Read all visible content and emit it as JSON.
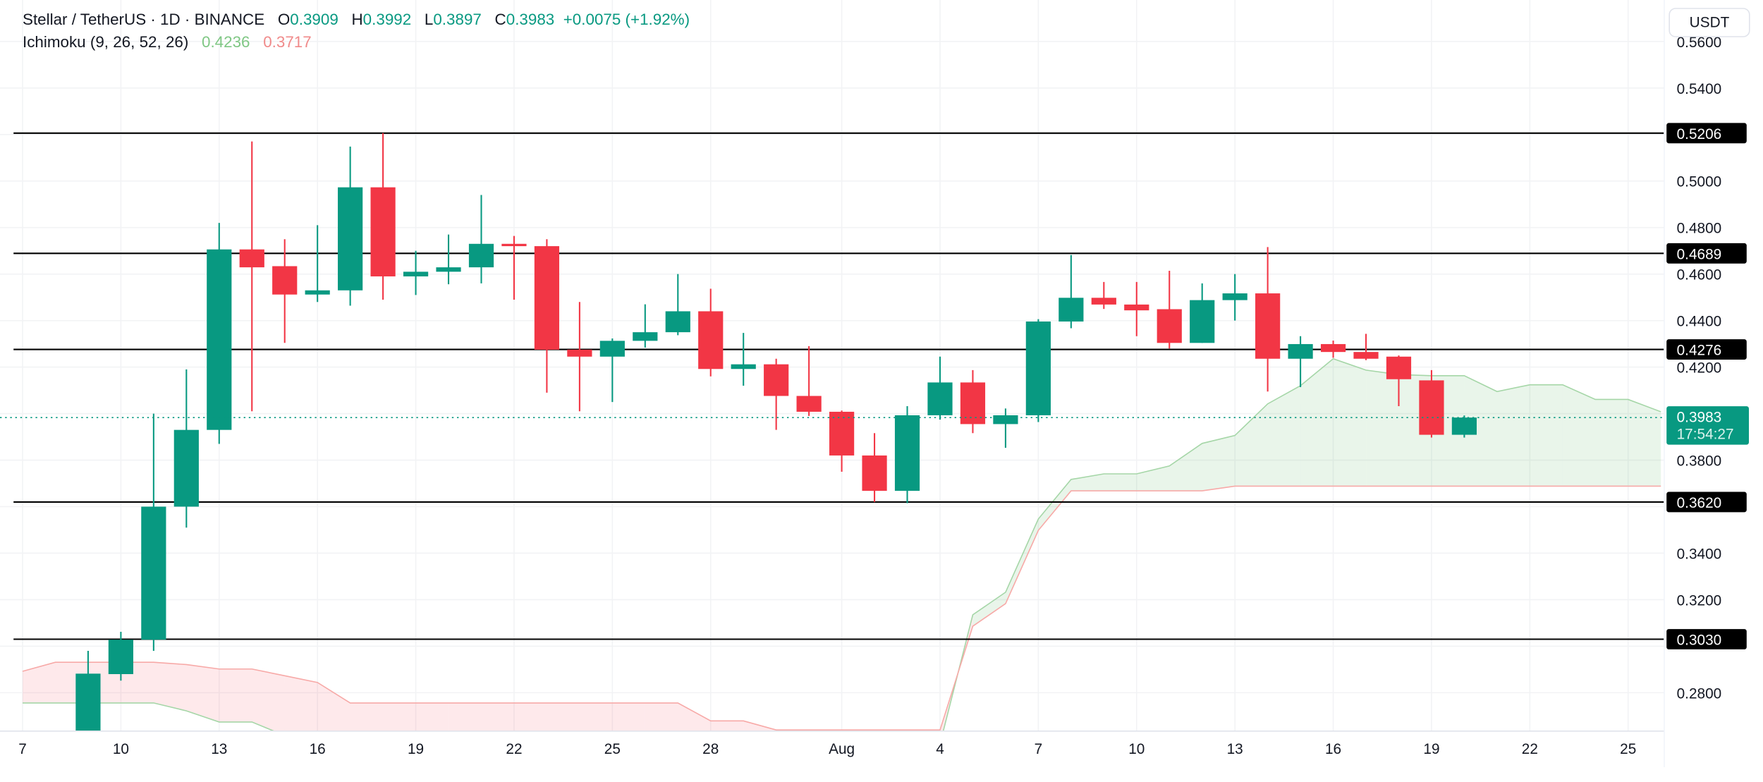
{
  "header": {
    "symbol": "Stellar / TetherUS · 1D · BINANCE",
    "o_label": "O",
    "o": "0.3909",
    "h_label": "H",
    "h": "0.3992",
    "l_label": "L",
    "l": "0.3897",
    "c_label": "C",
    "c": "0.3983",
    "change": "+0.0075 (+1.92%)",
    "indicator": "Ichimoku (9, 26, 52, 26)",
    "ind_val1": "0.4236",
    "ind_val2": "0.3717"
  },
  "currency_button": "USDT",
  "colors": {
    "up": "#089981",
    "down": "#F23645",
    "spanA": "#A5D6A7",
    "spanB": "#F7A9A7",
    "level": "#000000"
  },
  "chart_data": {
    "type": "candlestick",
    "title": "Stellar / TetherUS · 1D · BINANCE",
    "ylim": [
      0.264,
      0.5557
    ],
    "x_range": [
      "Jul 7",
      "Aug 26"
    ],
    "grid": true,
    "y_ticks": [
      "0.5600",
      "0.5400",
      "0.5000",
      "0.4800",
      "0.4600",
      "0.4400",
      "0.4200",
      "0.3800",
      "0.3400",
      "0.3200",
      "0.2800"
    ],
    "x_ticks": [
      {
        "date": "Jul 7",
        "label": "7"
      },
      {
        "date": "Jul 10",
        "label": "10"
      },
      {
        "date": "Jul 13",
        "label": "13"
      },
      {
        "date": "Jul 16",
        "label": "16"
      },
      {
        "date": "Jul 19",
        "label": "19"
      },
      {
        "date": "Jul 22",
        "label": "22"
      },
      {
        "date": "Jul 25",
        "label": "25"
      },
      {
        "date": "Jul 28",
        "label": "28"
      },
      {
        "date": "Aug 1",
        "label": "Aug"
      },
      {
        "date": "Aug 4",
        "label": "4"
      },
      {
        "date": "Aug 7",
        "label": "7"
      },
      {
        "date": "Aug 10",
        "label": "10"
      },
      {
        "date": "Aug 13",
        "label": "13"
      },
      {
        "date": "Aug 16",
        "label": "16"
      },
      {
        "date": "Aug 19",
        "label": "19"
      },
      {
        "date": "Aug 22",
        "label": "22"
      },
      {
        "date": "Aug 25",
        "label": "25"
      }
    ],
    "candles": [
      {
        "date": "Jul 9",
        "o": 0.262,
        "h": 0.298,
        "l": 0.258,
        "c": 0.2882
      },
      {
        "date": "Jul 10",
        "o": 0.288,
        "h": 0.3062,
        "l": 0.2852,
        "c": 0.3028
      },
      {
        "date": "Jul 11",
        "o": 0.3028,
        "h": 0.4,
        "l": 0.298,
        "c": 0.36
      },
      {
        "date": "Jul 12",
        "o": 0.36,
        "h": 0.419,
        "l": 0.351,
        "c": 0.393
      },
      {
        "date": "Jul 13",
        "o": 0.393,
        "h": 0.482,
        "l": 0.387,
        "c": 0.4706
      },
      {
        "date": "Jul 14",
        "o": 0.4706,
        "h": 0.517,
        "l": 0.401,
        "c": 0.4629
      },
      {
        "date": "Jul 15",
        "o": 0.4634,
        "h": 0.475,
        "l": 0.4304,
        "c": 0.4512
      },
      {
        "date": "Jul 16",
        "o": 0.4512,
        "h": 0.481,
        "l": 0.448,
        "c": 0.453
      },
      {
        "date": "Jul 17",
        "o": 0.453,
        "h": 0.5148,
        "l": 0.4464,
        "c": 0.4973
      },
      {
        "date": "Jul 18",
        "o": 0.4973,
        "h": 0.5206,
        "l": 0.449,
        "c": 0.459
      },
      {
        "date": "Jul 19",
        "o": 0.459,
        "h": 0.47,
        "l": 0.451,
        "c": 0.461
      },
      {
        "date": "Jul 20",
        "o": 0.461,
        "h": 0.477,
        "l": 0.4556,
        "c": 0.4629
      },
      {
        "date": "Jul 21",
        "o": 0.4629,
        "h": 0.494,
        "l": 0.456,
        "c": 0.473
      },
      {
        "date": "Jul 22",
        "o": 0.473,
        "h": 0.4764,
        "l": 0.449,
        "c": 0.472
      },
      {
        "date": "Jul 23",
        "o": 0.472,
        "h": 0.475,
        "l": 0.409,
        "c": 0.4275
      },
      {
        "date": "Jul 24",
        "o": 0.4275,
        "h": 0.448,
        "l": 0.401,
        "c": 0.4245
      },
      {
        "date": "Jul 25",
        "o": 0.4245,
        "h": 0.4323,
        "l": 0.405,
        "c": 0.4313
      },
      {
        "date": "Jul 26",
        "o": 0.4313,
        "h": 0.447,
        "l": 0.4284,
        "c": 0.435
      },
      {
        "date": "Jul 27",
        "o": 0.435,
        "h": 0.46,
        "l": 0.4337,
        "c": 0.444
      },
      {
        "date": "Jul 28",
        "o": 0.444,
        "h": 0.4537,
        "l": 0.416,
        "c": 0.4192
      },
      {
        "date": "Jul 29",
        "o": 0.4192,
        "h": 0.4347,
        "l": 0.412,
        "c": 0.4212
      },
      {
        "date": "Jul 30",
        "o": 0.4212,
        "h": 0.4236,
        "l": 0.393,
        "c": 0.4076
      },
      {
        "date": "Jul 31",
        "o": 0.4076,
        "h": 0.429,
        "l": 0.399,
        "c": 0.4008
      },
      {
        "date": "Aug 1",
        "o": 0.4008,
        "h": 0.4013,
        "l": 0.375,
        "c": 0.382
      },
      {
        "date": "Aug 2",
        "o": 0.382,
        "h": 0.3916,
        "l": 0.362,
        "c": 0.3668
      },
      {
        "date": "Aug 3",
        "o": 0.3668,
        "h": 0.4032,
        "l": 0.3615,
        "c": 0.3993
      },
      {
        "date": "Aug 4",
        "o": 0.3993,
        "h": 0.4245,
        "l": 0.3974,
        "c": 0.4134
      },
      {
        "date": "Aug 5",
        "o": 0.4134,
        "h": 0.4187,
        "l": 0.3916,
        "c": 0.3955
      },
      {
        "date": "Aug 6",
        "o": 0.3955,
        "h": 0.4022,
        "l": 0.3853,
        "c": 0.3993
      },
      {
        "date": "Aug 7",
        "o": 0.3993,
        "h": 0.4406,
        "l": 0.3964,
        "c": 0.4396
      },
      {
        "date": "Aug 8",
        "o": 0.4396,
        "h": 0.4682,
        "l": 0.4367,
        "c": 0.4498
      },
      {
        "date": "Aug 9",
        "o": 0.4498,
        "h": 0.4566,
        "l": 0.445,
        "c": 0.4469
      },
      {
        "date": "Aug 10",
        "o": 0.4469,
        "h": 0.4566,
        "l": 0.4333,
        "c": 0.4444
      },
      {
        "date": "Aug 11",
        "o": 0.4449,
        "h": 0.4614,
        "l": 0.428,
        "c": 0.4304
      },
      {
        "date": "Aug 12",
        "o": 0.4304,
        "h": 0.456,
        "l": 0.4304,
        "c": 0.4488
      },
      {
        "date": "Aug 13",
        "o": 0.4488,
        "h": 0.46,
        "l": 0.44,
        "c": 0.4517
      },
      {
        "date": "Aug 14",
        "o": 0.4517,
        "h": 0.4716,
        "l": 0.4095,
        "c": 0.4236
      },
      {
        "date": "Aug 15",
        "o": 0.4236,
        "h": 0.4333,
        "l": 0.4114,
        "c": 0.4299
      },
      {
        "date": "Aug 16",
        "o": 0.4299,
        "h": 0.4314,
        "l": 0.424,
        "c": 0.4265
      },
      {
        "date": "Aug 17",
        "o": 0.4265,
        "h": 0.4343,
        "l": 0.423,
        "c": 0.4236
      },
      {
        "date": "Aug 18",
        "o": 0.4245,
        "h": 0.425,
        "l": 0.4032,
        "c": 0.4148
      },
      {
        "date": "Aug 19",
        "o": 0.4143,
        "h": 0.4187,
        "l": 0.3897,
        "c": 0.3909
      },
      {
        "date": "Aug 20",
        "o": 0.3909,
        "h": 0.3992,
        "l": 0.3897,
        "c": 0.3983
      }
    ],
    "ichimoku": {
      "start_date": "Jul 7",
      "span_a": [
        0.2756,
        0.2756,
        0.2756,
        0.2756,
        0.2756,
        0.2722,
        0.2674,
        0.2674,
        0.2616,
        0.257,
        0.255,
        0.255,
        0.255,
        0.255,
        0.255,
        0.255,
        0.255,
        0.255,
        0.255,
        0.255,
        0.255,
        0.255,
        0.255,
        0.255,
        0.255,
        0.255,
        0.255,
        0.255,
        0.258,
        0.3135,
        0.3232,
        0.3547,
        0.3717,
        0.3741,
        0.3741,
        0.3775,
        0.3872,
        0.3906,
        0.4042,
        0.412,
        0.4236,
        0.4187,
        0.4168,
        0.4163,
        0.4163,
        0.4095,
        0.4124,
        0.4124,
        0.4061,
        0.4061,
        0.4008
      ],
      "span_b": [
        0.2892,
        0.2931,
        0.2931,
        0.2931,
        0.2931,
        0.2921,
        0.2902,
        0.2902,
        0.2873,
        0.2844,
        0.2756,
        0.2756,
        0.2756,
        0.2756,
        0.2756,
        0.2756,
        0.2756,
        0.2756,
        0.2756,
        0.2756,
        0.2756,
        0.2679,
        0.2679,
        0.264,
        0.264,
        0.264,
        0.264,
        0.264,
        0.264,
        0.3086,
        0.3183,
        0.3498,
        0.3668,
        0.3668,
        0.3668,
        0.3668,
        0.3668,
        0.3688,
        0.3688,
        0.3688,
        0.3688,
        0.3688,
        0.3688,
        0.3688,
        0.3688,
        0.3688,
        0.3688,
        0.3688,
        0.3688,
        0.3688,
        0.3688
      ]
    },
    "levels": [
      "0.5206",
      "0.4689",
      "0.4276",
      "0.3620",
      "0.3030"
    ],
    "last_price": "0.3983",
    "countdown": "17:54:27"
  }
}
